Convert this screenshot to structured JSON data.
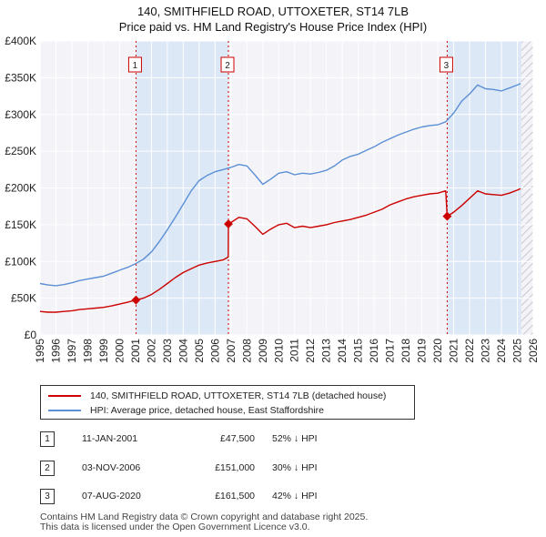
{
  "title_line1": "140, SMITHFIELD ROAD, UTTOXETER, ST14 7LB",
  "title_line2": "Price paid vs. HM Land Registry's House Price Index (HPI)",
  "chart_data": {
    "type": "line",
    "xlim": [
      1995,
      2026
    ],
    "ylim": [
      0,
      400000
    ],
    "x_ticks": [
      1995,
      1996,
      1997,
      1998,
      1999,
      2000,
      2001,
      2002,
      2003,
      2004,
      2005,
      2006,
      2007,
      2008,
      2009,
      2010,
      2011,
      2012,
      2013,
      2014,
      2015,
      2016,
      2017,
      2018,
      2019,
      2020,
      2021,
      2022,
      2023,
      2024,
      2025,
      2026
    ],
    "y_ticks": [
      0,
      50000,
      100000,
      150000,
      200000,
      250000,
      300000,
      350000,
      400000
    ],
    "y_tick_labels": [
      "£0",
      "£50K",
      "£100K",
      "£150K",
      "£200K",
      "£250K",
      "£300K",
      "£350K",
      "£400K"
    ],
    "hpi_color": "#5b8fd6",
    "price_color": "#cc0000",
    "shade_color": "#dde8f6",
    "series": [
      {
        "name": "HPI: Average price, detached house, East Staffordshire",
        "color": "#5b8fd6",
        "points": [
          [
            1995.0,
            70000
          ],
          [
            1995.5,
            68000
          ],
          [
            1996.0,
            67000
          ],
          [
            1996.5,
            68500
          ],
          [
            1997.0,
            71000
          ],
          [
            1997.5,
            74000
          ],
          [
            1998.0,
            76000
          ],
          [
            1998.5,
            78000
          ],
          [
            1999.0,
            80000
          ],
          [
            1999.5,
            84000
          ],
          [
            2000.0,
            88000
          ],
          [
            2000.5,
            92000
          ],
          [
            2001.0,
            97000
          ],
          [
            2001.5,
            103000
          ],
          [
            2002.0,
            113000
          ],
          [
            2002.5,
            127000
          ],
          [
            2003.0,
            143000
          ],
          [
            2003.5,
            160000
          ],
          [
            2004.0,
            178000
          ],
          [
            2004.5,
            196000
          ],
          [
            2005.0,
            210000
          ],
          [
            2005.5,
            217000
          ],
          [
            2006.0,
            222000
          ],
          [
            2006.5,
            225000
          ],
          [
            2007.0,
            228000
          ],
          [
            2007.5,
            232000
          ],
          [
            2008.0,
            230000
          ],
          [
            2008.5,
            218000
          ],
          [
            2009.0,
            205000
          ],
          [
            2009.5,
            212000
          ],
          [
            2010.0,
            220000
          ],
          [
            2010.5,
            222000
          ],
          [
            2011.0,
            218000
          ],
          [
            2011.5,
            220000
          ],
          [
            2012.0,
            219000
          ],
          [
            2012.5,
            221000
          ],
          [
            2013.0,
            224000
          ],
          [
            2013.5,
            230000
          ],
          [
            2014.0,
            238000
          ],
          [
            2014.5,
            243000
          ],
          [
            2015.0,
            246000
          ],
          [
            2015.5,
            251000
          ],
          [
            2016.0,
            256000
          ],
          [
            2016.5,
            262000
          ],
          [
            2017.0,
            267000
          ],
          [
            2017.5,
            272000
          ],
          [
            2018.0,
            276000
          ],
          [
            2018.5,
            280000
          ],
          [
            2019.0,
            283000
          ],
          [
            2019.5,
            285000
          ],
          [
            2020.0,
            286000
          ],
          [
            2020.5,
            290000
          ],
          [
            2021.0,
            302000
          ],
          [
            2021.5,
            318000
          ],
          [
            2022.0,
            328000
          ],
          [
            2022.5,
            340000
          ],
          [
            2023.0,
            335000
          ],
          [
            2023.5,
            334000
          ],
          [
            2024.0,
            332000
          ],
          [
            2024.5,
            336000
          ],
          [
            2025.0,
            340000
          ],
          [
            2025.2,
            342000
          ]
        ]
      },
      {
        "name": "140, SMITHFIELD ROAD, UTTOXETER, ST14 7LB (detached house)",
        "color": "#cc0000",
        "points": [
          [
            1995.0,
            32000
          ],
          [
            1995.5,
            31000
          ],
          [
            1996.0,
            31000
          ],
          [
            1996.5,
            32000
          ],
          [
            1997.0,
            33000
          ],
          [
            1997.5,
            34500
          ],
          [
            1998.0,
            35500
          ],
          [
            1998.5,
            36500
          ],
          [
            1999.0,
            37500
          ],
          [
            1999.5,
            39500
          ],
          [
            2000.0,
            42000
          ],
          [
            2000.5,
            44500
          ],
          [
            2001.03,
            47500
          ],
          [
            2001.5,
            50000
          ],
          [
            2002.0,
            55000
          ],
          [
            2002.5,
            62000
          ],
          [
            2003.0,
            70000
          ],
          [
            2003.5,
            78000
          ],
          [
            2004.0,
            85000
          ],
          [
            2004.5,
            90000
          ],
          [
            2005.0,
            95000
          ],
          [
            2005.5,
            98000
          ],
          [
            2006.0,
            100000
          ],
          [
            2006.5,
            102000
          ],
          [
            2006.83,
            106000
          ],
          [
            2006.84,
            151000
          ],
          [
            2007.0,
            153000
          ],
          [
            2007.5,
            160000
          ],
          [
            2008.0,
            158000
          ],
          [
            2008.5,
            148000
          ],
          [
            2009.0,
            137000
          ],
          [
            2009.5,
            144000
          ],
          [
            2010.0,
            150000
          ],
          [
            2010.5,
            152000
          ],
          [
            2011.0,
            146000
          ],
          [
            2011.5,
            148000
          ],
          [
            2012.0,
            146000
          ],
          [
            2012.5,
            148000
          ],
          [
            2013.0,
            150000
          ],
          [
            2013.5,
            153000
          ],
          [
            2014.0,
            155000
          ],
          [
            2014.5,
            157000
          ],
          [
            2015.0,
            160000
          ],
          [
            2015.5,
            163000
          ],
          [
            2016.0,
            167000
          ],
          [
            2016.5,
            171000
          ],
          [
            2017.0,
            177000
          ],
          [
            2017.5,
            181000
          ],
          [
            2018.0,
            185000
          ],
          [
            2018.5,
            188000
          ],
          [
            2019.0,
            190000
          ],
          [
            2019.5,
            192000
          ],
          [
            2020.0,
            193000
          ],
          [
            2020.5,
            196000
          ],
          [
            2020.59,
            161500
          ],
          [
            2021.0,
            167000
          ],
          [
            2021.5,
            176000
          ],
          [
            2022.0,
            186000
          ],
          [
            2022.5,
            196000
          ],
          [
            2023.0,
            192000
          ],
          [
            2023.5,
            191000
          ],
          [
            2024.0,
            190000
          ],
          [
            2024.5,
            193000
          ],
          [
            2025.0,
            197000
          ],
          [
            2025.2,
            199000
          ]
        ]
      }
    ],
    "sales": [
      {
        "label": "1",
        "x": 2001.03,
        "y": 47500
      },
      {
        "label": "2",
        "x": 2006.84,
        "y": 151000
      },
      {
        "label": "3",
        "x": 2020.59,
        "y": 161500
      }
    ],
    "future_shade_from": 2025.25
  },
  "legend": {
    "price_label": "140, SMITHFIELD ROAD, UTTOXETER, ST14 7LB (detached house)",
    "hpi_label": "HPI: Average price, detached house, East Staffordshire"
  },
  "transactions": [
    {
      "num": "1",
      "date": "11-JAN-2001",
      "price": "£47,500",
      "diff": "52% ↓ HPI"
    },
    {
      "num": "2",
      "date": "03-NOV-2006",
      "price": "£151,000",
      "diff": "30% ↓ HPI"
    },
    {
      "num": "3",
      "date": "07-AUG-2020",
      "price": "£161,500",
      "diff": "42% ↓ HPI"
    }
  ],
  "footer": {
    "line1": "Contains HM Land Registry data © Crown copyright and database right 2025.",
    "line2": "This data is licensed under the Open Government Licence v3.0."
  }
}
